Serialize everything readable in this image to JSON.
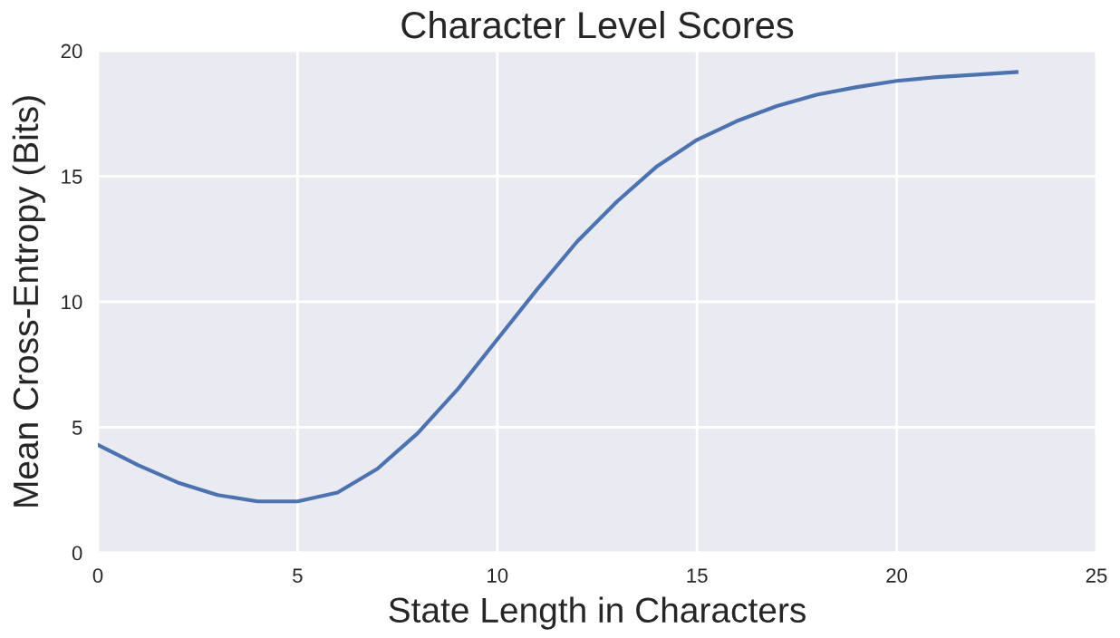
{
  "chart_data": {
    "type": "line",
    "title": "Character Level Scores",
    "xlabel": "State Length in Characters",
    "ylabel": "Mean Cross-Entropy (Bits)",
    "x": [
      0,
      1,
      2,
      3,
      4,
      5,
      6,
      7,
      8,
      9,
      10,
      11,
      12,
      13,
      14,
      15,
      16,
      17,
      18,
      19,
      20,
      21,
      22,
      23
    ],
    "series": [
      {
        "color": "#4c72b0",
        "values": [
          4.3,
          3.5,
          2.8,
          2.3,
          2.05,
          2.05,
          2.4,
          3.35,
          4.75,
          6.5,
          8.5,
          10.5,
          12.4,
          14.0,
          15.4,
          16.45,
          17.2,
          17.8,
          18.25,
          18.55,
          18.8,
          18.95,
          19.05,
          19.15
        ]
      }
    ],
    "xlim": [
      0,
      25
    ],
    "ylim": [
      0,
      20
    ],
    "xticks": [
      0,
      5,
      10,
      15,
      20,
      25
    ],
    "yticks": [
      0,
      5,
      10,
      15,
      20
    ],
    "grid": true
  }
}
